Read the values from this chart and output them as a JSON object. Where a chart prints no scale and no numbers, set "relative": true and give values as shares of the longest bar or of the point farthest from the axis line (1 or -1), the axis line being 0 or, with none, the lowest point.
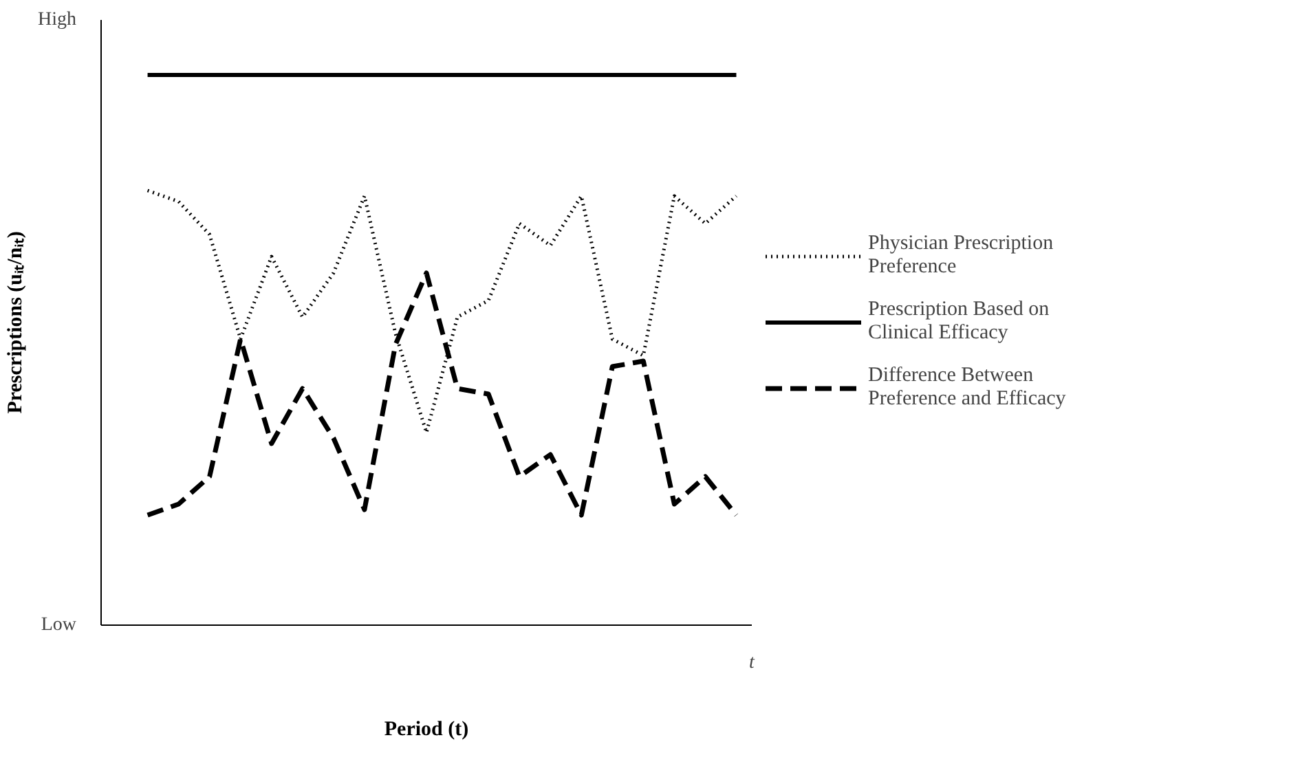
{
  "chart_data": {
    "type": "line",
    "relative": true,
    "xlabel": "Period (t)",
    "ylabel": "Prescriptions (uᵢₜ/nᵢₜ)",
    "categories": [
      null,
      null,
      null,
      null,
      null,
      null,
      null,
      null,
      null,
      null,
      null,
      null,
      null,
      null,
      null,
      null,
      null,
      null,
      null,
      null
    ],
    "annotations": [
      "High",
      "Low",
      "t"
    ],
    "legend": "right",
    "marker": "none",
    "series": [
      {
        "name": "Physician Prescription Preference",
        "color": "#000000",
        "line_style": "dotted",
        "values": [
          0.79,
          0.77,
          0.71,
          0.52,
          0.67,
          0.56,
          0.64,
          0.78,
          0.53,
          0.35,
          0.56,
          0.59,
          0.73,
          0.69,
          0.78,
          0.52,
          0.49,
          0.78,
          0.73,
          0.78
        ]
      },
      {
        "name": "Prescription Based on Clinical Efficacy",
        "color": "#000000",
        "line_style": "solid",
        "values": [
          1,
          1,
          1,
          1,
          1,
          1,
          1,
          1,
          1,
          1,
          1,
          1,
          1,
          1,
          1,
          1,
          1,
          1,
          1,
          1
        ]
      },
      {
        "name": "Difference Between Preference and Efficacy",
        "color": "#000000",
        "line_style": "dashed",
        "values": [
          0.2,
          0.22,
          0.27,
          0.52,
          0.33,
          0.43,
          0.34,
          0.21,
          0.51,
          0.64,
          0.43,
          0.42,
          0.27,
          0.31,
          0.2,
          0.47,
          0.48,
          0.22,
          0.27,
          0.2
        ]
      }
    ]
  }
}
